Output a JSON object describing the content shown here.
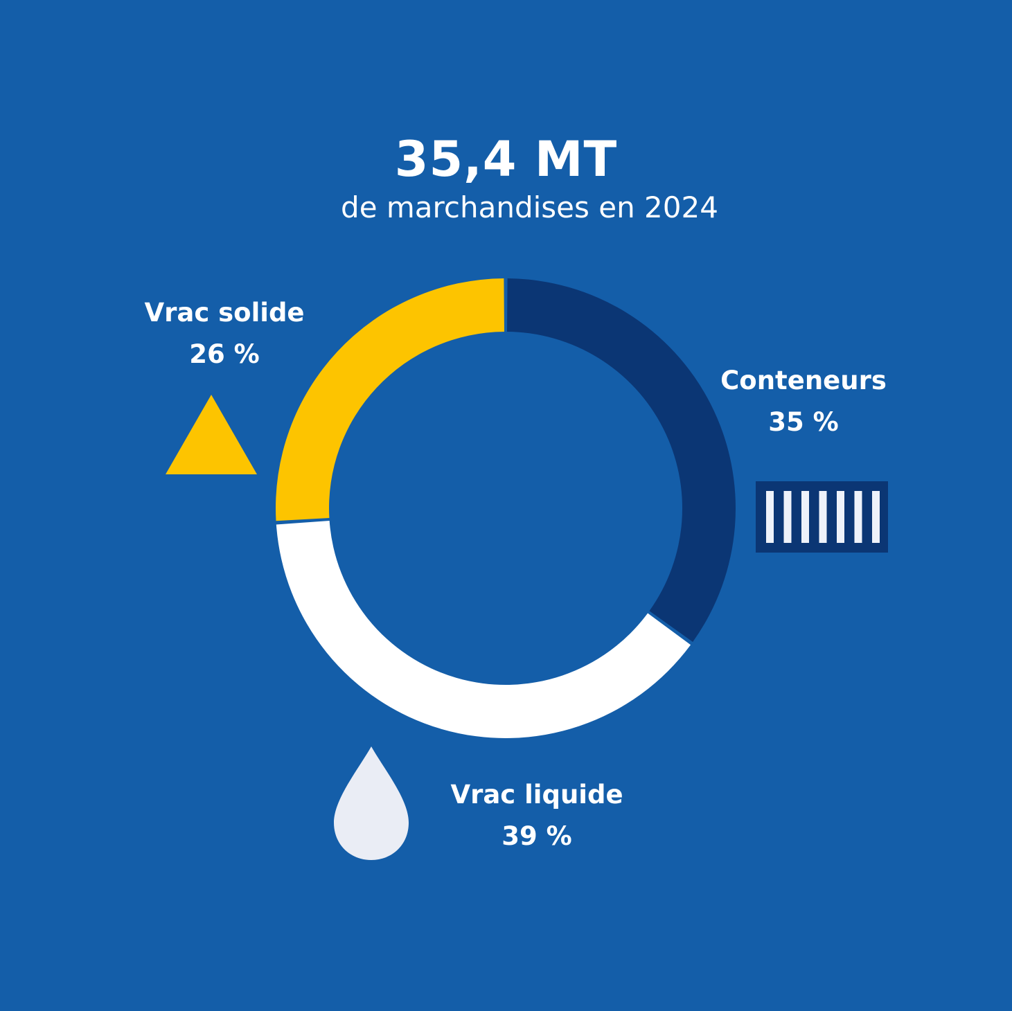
{
  "header": {
    "title": "35,4 MT",
    "subtitle": "de marchandises en 2024"
  },
  "chart_data": {
    "type": "pie",
    "donut": true,
    "categories": [
      "Conteneurs",
      "Vrac liquide",
      "Vrac solide"
    ],
    "values": [
      35,
      39,
      26
    ],
    "labels": [
      "35 %",
      "39 %",
      "26 %"
    ],
    "colors": [
      "#0b3674",
      "#ffffff",
      "#fdc400"
    ],
    "legend": "none"
  },
  "colors": {
    "background": "#145ea9",
    "container_icon": "#0b3674",
    "drop_icon": "#eaedf5",
    "triangle_icon": "#fdc400"
  },
  "icons": {
    "solide": "triangle-icon",
    "conteneurs": "container-icon",
    "liquide": "drop-icon"
  }
}
